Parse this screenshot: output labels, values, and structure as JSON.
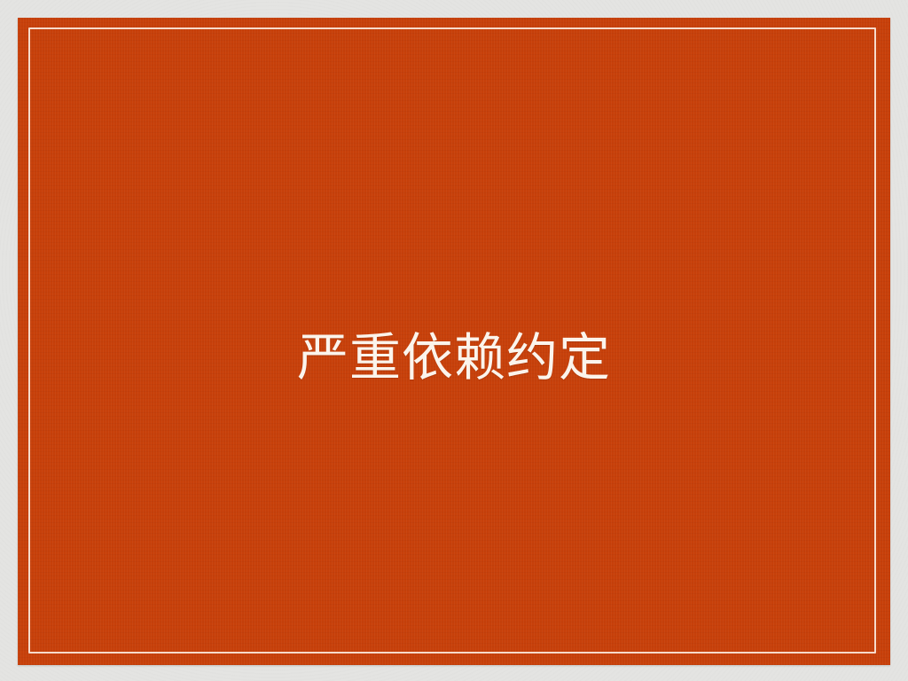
{
  "slide": {
    "title": "严重依赖约定"
  },
  "colors": {
    "background": "#e4e4e2",
    "card": "#c7400a",
    "border": "#fff6ec",
    "title_text": "#fbf4ec"
  }
}
